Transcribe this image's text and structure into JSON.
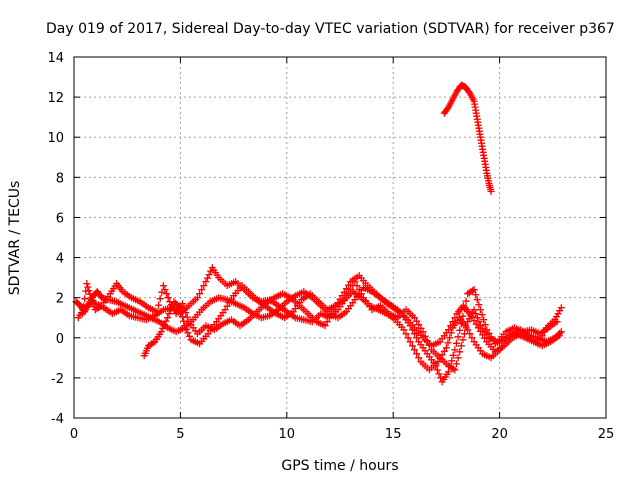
{
  "chart_data": {
    "type": "scatter",
    "title": "Day 019 of 2017, Sidereal Day-to-day VTEC variation (SDTVAR) for receiver p367",
    "xlabel": "GPS time / hours",
    "ylabel": "SDTVAR / TECUs",
    "xlim": [
      0,
      25
    ],
    "ylim": [
      -4,
      14
    ],
    "x_ticks": [
      "0",
      "5",
      "10",
      "15",
      "20",
      "25"
    ],
    "y_ticks": [
      "-4",
      "-2",
      "0",
      "2",
      "4",
      "6",
      "8",
      "10",
      "12",
      "14"
    ],
    "grid": true,
    "marker": "+",
    "series": [
      {
        "name": "track-a",
        "color": "#ff0000",
        "points": [
          [
            0.1,
            1.8
          ],
          [
            0.3,
            1.6
          ],
          [
            0.5,
            1.3
          ],
          [
            0.7,
            1.7
          ],
          [
            0.9,
            2.1
          ],
          [
            1.1,
            2.3
          ],
          [
            1.3,
            2.0
          ],
          [
            1.6,
            1.9
          ],
          [
            2.0,
            1.8
          ],
          [
            2.4,
            1.6
          ],
          [
            2.8,
            1.4
          ],
          [
            3.2,
            1.2
          ],
          [
            3.6,
            1.0
          ],
          [
            4.0,
            0.8
          ],
          [
            4.4,
            0.5
          ],
          [
            4.8,
            0.3
          ],
          [
            5.2,
            0.5
          ],
          [
            5.6,
            0.9
          ],
          [
            6.0,
            1.4
          ],
          [
            6.4,
            1.8
          ],
          [
            6.8,
            2.0
          ],
          [
            7.2,
            1.9
          ],
          [
            7.6,
            1.7
          ],
          [
            8.0,
            1.5
          ],
          [
            8.4,
            1.2
          ],
          [
            8.8,
            1.0
          ],
          [
            9.2,
            1.1
          ],
          [
            9.6,
            1.4
          ],
          [
            10.0,
            1.8
          ],
          [
            10.4,
            2.1
          ],
          [
            10.8,
            2.3
          ],
          [
            11.2,
            2.0
          ],
          [
            11.6,
            1.6
          ],
          [
            12.0,
            1.2
          ],
          [
            12.4,
            1.0
          ],
          [
            12.8,
            1.3
          ],
          [
            13.2,
            1.9
          ],
          [
            13.6,
            2.5
          ],
          [
            14.0,
            2.3
          ],
          [
            14.4,
            2.0
          ],
          [
            14.8,
            1.7
          ],
          [
            15.2,
            1.4
          ],
          [
            15.6,
            1.0
          ],
          [
            16.0,
            0.5
          ],
          [
            16.4,
            0.0
          ],
          [
            16.8,
            -0.4
          ],
          [
            17.2,
            -0.2
          ],
          [
            17.6,
            0.4
          ],
          [
            18.0,
            1.2
          ],
          [
            18.3,
            1.6
          ],
          [
            18.6,
            1.2
          ],
          [
            19.0,
            0.5
          ],
          [
            19.4,
            -0.2
          ],
          [
            19.8,
            -0.7
          ],
          [
            20.2,
            -0.4
          ],
          [
            20.6,
            0.0
          ],
          [
            21.0,
            0.2
          ],
          [
            21.4,
            0.1
          ],
          [
            21.8,
            0.0
          ],
          [
            22.2,
            -0.2
          ],
          [
            22.6,
            0.0
          ],
          [
            22.9,
            0.3
          ]
        ]
      },
      {
        "name": "track-b",
        "color": "#ff0000",
        "points": [
          [
            0.4,
            1.2
          ],
          [
            0.6,
            2.7
          ],
          [
            0.8,
            2.0
          ],
          [
            1.0,
            1.4
          ],
          [
            1.3,
            1.6
          ],
          [
            1.7,
            2.2
          ],
          [
            2.0,
            2.7
          ],
          [
            2.3,
            2.3
          ],
          [
            2.7,
            2.0
          ],
          [
            3.1,
            1.8
          ],
          [
            3.5,
            1.5
          ],
          [
            3.9,
            1.3
          ],
          [
            4.2,
            2.6
          ],
          [
            4.5,
            1.8
          ],
          [
            4.8,
            1.2
          ],
          [
            5.1,
            1.7
          ],
          [
            5.4,
            0.8
          ],
          [
            5.8,
            0.2
          ],
          [
            6.2,
            0.6
          ],
          [
            6.6,
            0.4
          ],
          [
            7.0,
            0.7
          ],
          [
            7.4,
            0.9
          ],
          [
            7.8,
            0.6
          ],
          [
            8.2,
            0.9
          ],
          [
            8.6,
            1.3
          ],
          [
            9.0,
            1.7
          ],
          [
            9.4,
            2.0
          ],
          [
            9.8,
            2.2
          ],
          [
            10.2,
            2.0
          ],
          [
            10.6,
            1.6
          ],
          [
            11.0,
            1.2
          ],
          [
            11.4,
            0.8
          ],
          [
            11.8,
            0.6
          ],
          [
            12.2,
            1.4
          ],
          [
            12.6,
            2.1
          ],
          [
            13.0,
            2.8
          ],
          [
            13.4,
            3.1
          ],
          [
            13.8,
            2.6
          ],
          [
            14.2,
            2.2
          ],
          [
            14.6,
            1.8
          ],
          [
            15.0,
            1.5
          ],
          [
            15.4,
            1.2
          ],
          [
            15.8,
            0.6
          ],
          [
            16.2,
            -0.2
          ],
          [
            16.6,
            -0.8
          ],
          [
            17.0,
            -1.4
          ],
          [
            17.3,
            -2.2
          ],
          [
            17.6,
            -1.7
          ],
          [
            17.9,
            -0.6
          ],
          [
            18.2,
            0.7
          ],
          [
            18.5,
            2.2
          ],
          [
            18.8,
            2.4
          ],
          [
            19.1,
            1.4
          ],
          [
            19.4,
            0.4
          ],
          [
            19.8,
            -0.3
          ],
          [
            20.2,
            -0.1
          ],
          [
            20.6,
            0.2
          ],
          [
            21.0,
            0.4
          ],
          [
            21.4,
            0.1
          ],
          [
            21.8,
            -0.3
          ],
          [
            22.2,
            0.5
          ],
          [
            22.6,
            0.9
          ],
          [
            22.9,
            1.5
          ]
        ]
      },
      {
        "name": "track-c",
        "color": "#ff0000",
        "points": [
          [
            3.3,
            -0.9
          ],
          [
            3.5,
            -0.4
          ],
          [
            3.8,
            -0.2
          ],
          [
            4.1,
            0.3
          ],
          [
            4.4,
            1.0
          ],
          [
            4.7,
            1.8
          ],
          [
            5.0,
            1.5
          ],
          [
            5.2,
            0.6
          ],
          [
            5.5,
            -0.1
          ],
          [
            5.9,
            -0.3
          ],
          [
            6.3,
            0.2
          ],
          [
            6.7,
            0.8
          ],
          [
            7.1,
            1.4
          ],
          [
            7.5,
            2.1
          ],
          [
            7.9,
            2.6
          ],
          [
            8.3,
            2.2
          ],
          [
            8.7,
            1.8
          ],
          [
            9.1,
            1.5
          ],
          [
            9.5,
            1.2
          ],
          [
            9.9,
            1.0
          ],
          [
            10.3,
            1.3
          ],
          [
            10.7,
            1.9
          ],
          [
            11.1,
            2.2
          ],
          [
            11.5,
            1.8
          ],
          [
            11.9,
            1.4
          ],
          [
            12.3,
            1.6
          ],
          [
            12.7,
            1.9
          ],
          [
            13.1,
            2.3
          ],
          [
            13.5,
            2.0
          ],
          [
            13.9,
            1.6
          ],
          [
            14.3,
            1.4
          ],
          [
            14.7,
            1.2
          ],
          [
            15.1,
            0.9
          ],
          [
            15.5,
            0.4
          ],
          [
            15.9,
            -0.4
          ],
          [
            16.3,
            -1.2
          ],
          [
            16.7,
            -1.6
          ],
          [
            17.1,
            -1.2
          ],
          [
            17.5,
            -0.5
          ],
          [
            17.8,
            0.5
          ],
          [
            18.1,
            1.0
          ],
          [
            18.4,
            0.6
          ],
          [
            18.8,
            -0.2
          ],
          [
            19.2,
            -0.8
          ],
          [
            19.6,
            -1.0
          ],
          [
            20.0,
            -0.6
          ],
          [
            20.4,
            -0.2
          ],
          [
            20.8,
            0.2
          ],
          [
            21.2,
            0.0
          ],
          [
            21.6,
            -0.2
          ],
          [
            22.0,
            -0.4
          ],
          [
            22.4,
            -0.2
          ],
          [
            22.8,
            0.1
          ]
        ]
      },
      {
        "name": "track-d",
        "color": "#ff0000",
        "points": [
          [
            0.2,
            1.0
          ],
          [
            0.5,
            1.5
          ],
          [
            0.9,
            1.8
          ],
          [
            1.4,
            1.5
          ],
          [
            1.8,
            1.2
          ],
          [
            2.2,
            1.4
          ],
          [
            2.6,
            1.1
          ],
          [
            3.0,
            1.0
          ],
          [
            3.4,
            0.9
          ],
          [
            3.8,
            1.1
          ],
          [
            4.2,
            1.4
          ],
          [
            4.6,
            1.5
          ],
          [
            5.0,
            1.2
          ],
          [
            5.4,
            1.6
          ],
          [
            5.8,
            2.0
          ],
          [
            6.2,
            2.8
          ],
          [
            6.5,
            3.5
          ],
          [
            6.8,
            3.0
          ],
          [
            7.2,
            2.6
          ],
          [
            7.6,
            2.8
          ],
          [
            8.0,
            2.4
          ],
          [
            8.4,
            2.0
          ],
          [
            8.8,
            1.8
          ],
          [
            9.2,
            1.9
          ],
          [
            9.6,
            1.6
          ],
          [
            10.0,
            1.3
          ],
          [
            10.4,
            1.0
          ],
          [
            10.8,
            0.9
          ],
          [
            11.2,
            0.8
          ],
          [
            11.6,
            1.2
          ],
          [
            12.0,
            1.0
          ],
          [
            12.4,
            1.4
          ],
          [
            12.8,
            2.0
          ],
          [
            13.2,
            2.8
          ],
          [
            13.6,
            2.0
          ],
          [
            14.0,
            1.4
          ],
          [
            14.4,
            1.6
          ],
          [
            14.8,
            1.2
          ],
          [
            15.2,
            1.0
          ],
          [
            15.6,
            1.4
          ],
          [
            16.0,
            1.0
          ],
          [
            16.4,
            0.3
          ],
          [
            16.8,
            -0.6
          ],
          [
            17.2,
            -1.0
          ],
          [
            17.6,
            -1.4
          ],
          [
            17.9,
            -1.6
          ],
          [
            18.2,
            -0.4
          ],
          [
            18.5,
            0.8
          ],
          [
            18.8,
            1.4
          ],
          [
            19.1,
            0.6
          ],
          [
            19.5,
            0.0
          ],
          [
            19.9,
            -0.2
          ],
          [
            20.3,
            0.3
          ],
          [
            20.7,
            0.5
          ],
          [
            21.1,
            0.3
          ],
          [
            21.5,
            0.4
          ],
          [
            21.9,
            0.2
          ],
          [
            22.3,
            0.5
          ],
          [
            22.7,
            0.8
          ]
        ]
      },
      {
        "name": "track-e",
        "color": "#ff0000",
        "points": [
          [
            17.4,
            11.2
          ],
          [
            17.6,
            11.5
          ],
          [
            17.8,
            11.9
          ],
          [
            18.0,
            12.3
          ],
          [
            18.2,
            12.6
          ],
          [
            18.4,
            12.5
          ],
          [
            18.6,
            12.2
          ],
          [
            18.8,
            11.8
          ],
          [
            18.9,
            11.2
          ],
          [
            19.0,
            10.6
          ],
          [
            19.1,
            10.0
          ],
          [
            19.2,
            9.4
          ],
          [
            19.3,
            8.8
          ],
          [
            19.4,
            8.2
          ],
          [
            19.5,
            7.7
          ],
          [
            19.6,
            7.3
          ]
        ]
      }
    ]
  }
}
